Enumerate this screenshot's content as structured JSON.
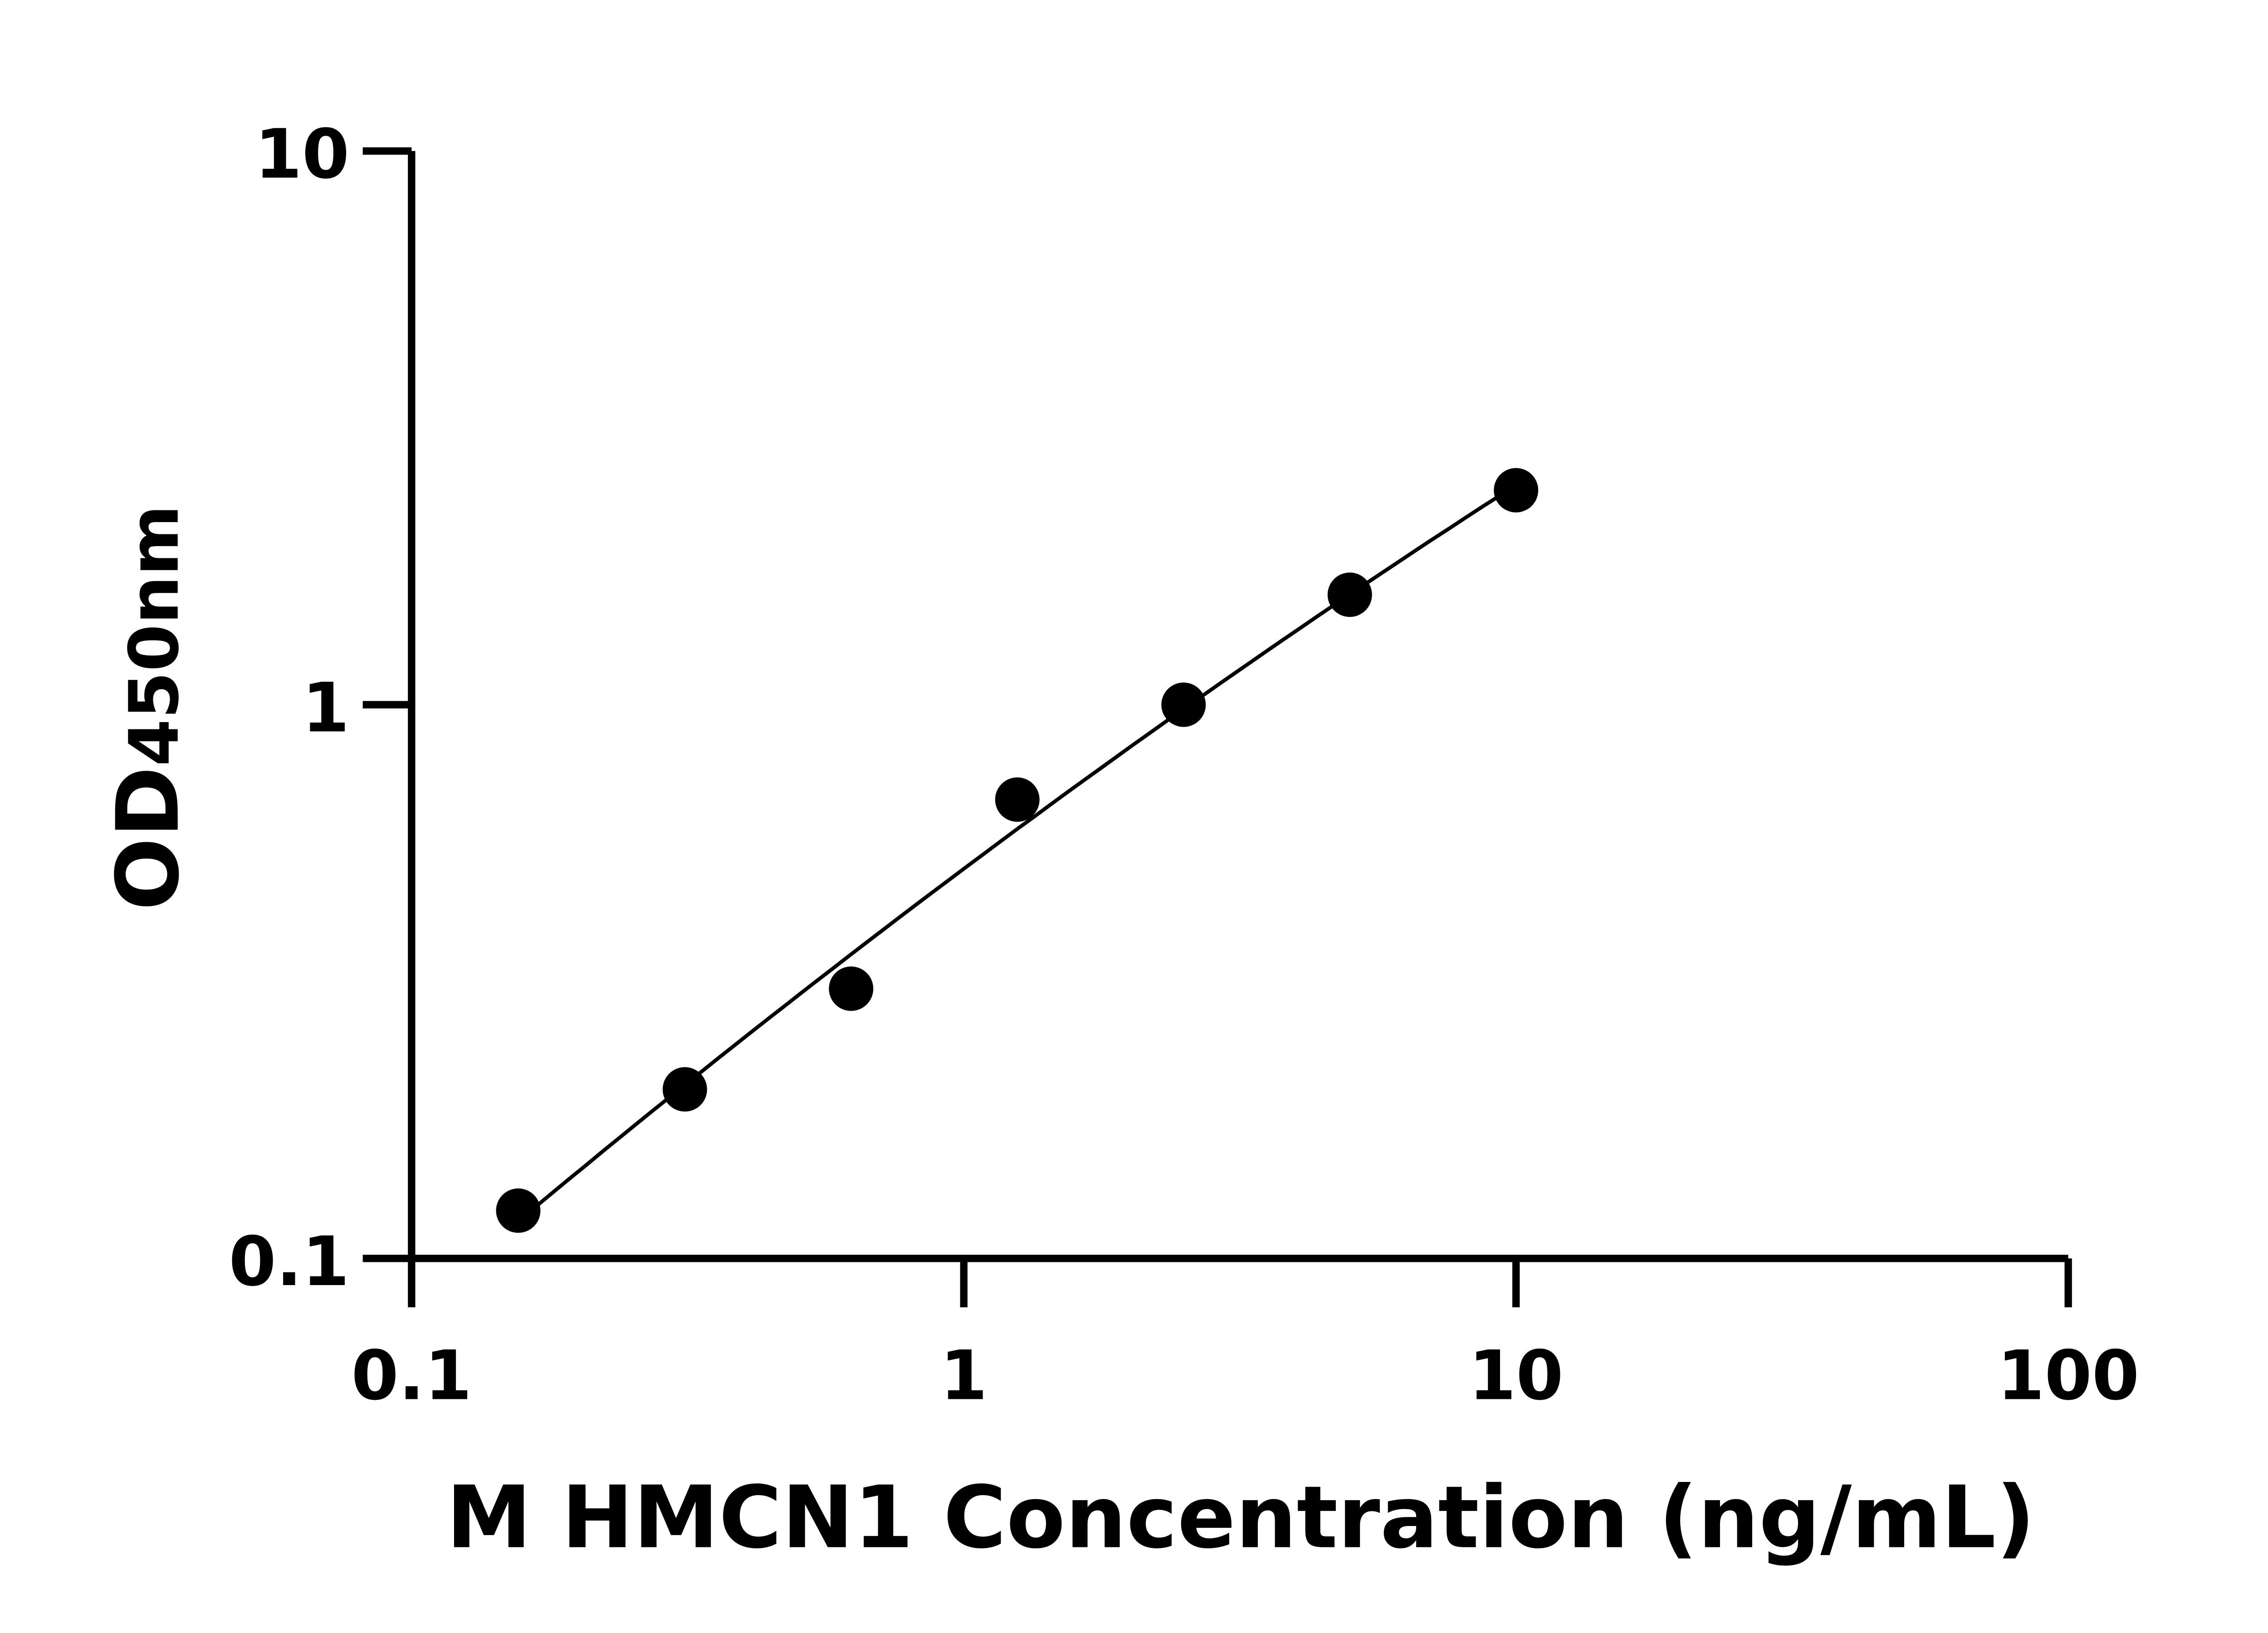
{
  "chart_data": {
    "type": "scatter",
    "title": "",
    "xlabel": "M HMCN1 Concentration (ng/mL)",
    "ylabel_main": "OD",
    "ylabel_sub": "450nm",
    "x_scale": "log",
    "y_scale": "log",
    "xlim": [
      0.1,
      100
    ],
    "ylim": [
      0.1,
      10
    ],
    "x_ticks": [
      "0.1",
      "1",
      "10",
      "100"
    ],
    "y_ticks": [
      "0.1",
      "1",
      "10"
    ],
    "grid": false,
    "legend": "none",
    "fit_line": true,
    "marker_color": "#000000",
    "line_color": "#000000",
    "points": [
      {
        "x": 0.156,
        "y": 0.122
      },
      {
        "x": 0.3125,
        "y": 0.202
      },
      {
        "x": 0.625,
        "y": 0.307
      },
      {
        "x": 1.25,
        "y": 0.674
      },
      {
        "x": 2.5,
        "y": 1.0
      },
      {
        "x": 5,
        "y": 1.58
      },
      {
        "x": 10,
        "y": 2.44
      }
    ]
  }
}
